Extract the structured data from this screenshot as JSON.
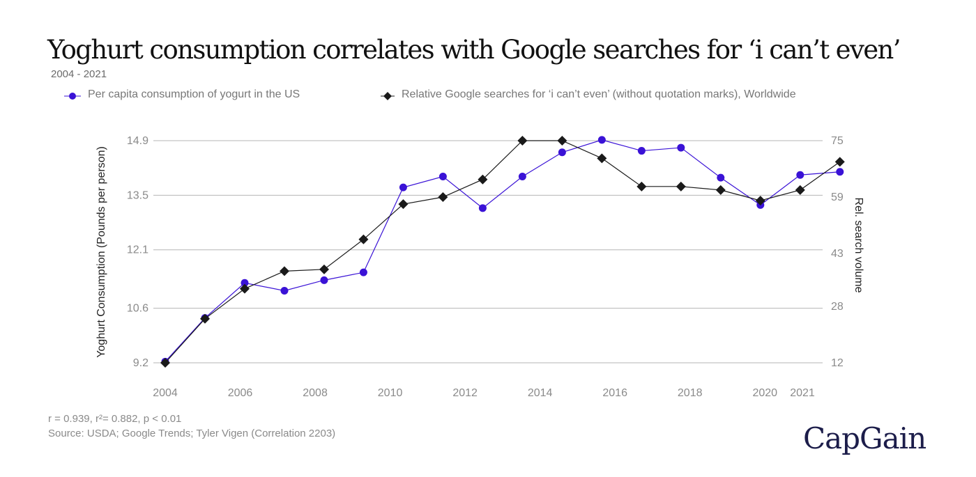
{
  "title": "Yoghurt consumption correlates with Google searches for ‘i can’t even’",
  "subtitle": "2004 - 2021",
  "stats": "r = 0.939, r²= 0.882, p < 0.01",
  "source": "Source: USDA; Google Trends; Tyler Vigen (Correlation 2203)",
  "brand": "CapGain",
  "colors": {
    "yogurt": "#3a12d6",
    "search": "#1a1a1a",
    "grid": "#b5b5b5",
    "tick": "#8a8a8a",
    "axis_title": "#222222"
  },
  "chart_data": {
    "type": "line",
    "title": "Yoghurt consumption correlates with Google searches for ‘i can’t even’",
    "xlabel": "",
    "xlim": [
      2004,
      2021
    ],
    "x_ticks": [
      "2004",
      "2006",
      "2008",
      "2010",
      "2012",
      "2014",
      "2016",
      "2018",
      "2020",
      "2021"
    ],
    "x_tick_values": [
      2004,
      2006,
      2008,
      2010,
      2012,
      2014,
      2016,
      2018,
      2020,
      2021
    ],
    "y_left": {
      "label": "Yoghurt Consumption (Pounds per person)",
      "range": [
        9.2,
        14.9
      ],
      "ticks": [
        "9.2",
        "10.6",
        "12.1",
        "13.5",
        "14.9"
      ],
      "tick_values": [
        9.2,
        10.6,
        12.1,
        13.5,
        14.9
      ]
    },
    "y_right": {
      "label": "Rel. search volume",
      "range": [
        12,
        75
      ],
      "ticks": [
        "12",
        "28",
        "43",
        "59",
        "75"
      ],
      "tick_values": [
        12,
        28,
        43,
        59,
        75
      ]
    },
    "series": [
      {
        "name": "Per capita consumption of yogurt in the US",
        "axis": "left",
        "marker": "circle",
        "x": [
          2004,
          2005.06,
          2006.12,
          2007.18,
          2008.24,
          2009.29,
          2010.35,
          2011.41,
          2012.47,
          2013.53,
          2014.59,
          2015.65,
          2016.71,
          2017.76,
          2018.82,
          2019.88,
          2020.94,
          2022
        ],
        "values": [
          9.23,
          10.35,
          11.25,
          11.05,
          11.32,
          11.52,
          13.7,
          13.98,
          13.17,
          13.98,
          14.6,
          14.92,
          14.64,
          14.72,
          13.95,
          13.25,
          14.02,
          14.1
        ]
      },
      {
        "name": "Relative Google searches for ‘i can’t even’ (without quotation marks), Worldwide",
        "axis": "right",
        "marker": "diamond",
        "x": [
          2004,
          2005.06,
          2006.12,
          2007.18,
          2008.24,
          2009.29,
          2010.35,
          2011.41,
          2012.47,
          2013.53,
          2014.59,
          2015.65,
          2016.71,
          2017.76,
          2018.82,
          2019.88,
          2020.94,
          2022
        ],
        "values": [
          12,
          24.5,
          33,
          38,
          38.5,
          47,
          57,
          59,
          64,
          75,
          75,
          70,
          62,
          62,
          61,
          58,
          61,
          69
        ]
      }
    ],
    "legend": "top"
  }
}
